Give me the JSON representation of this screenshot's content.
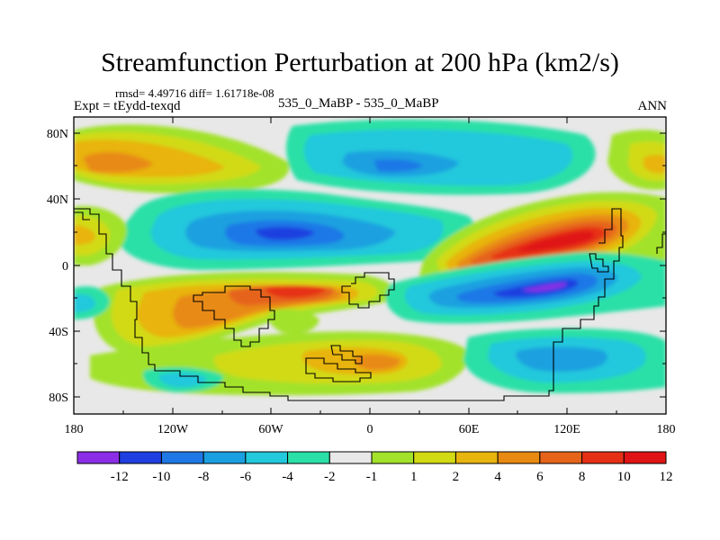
{
  "title": "Streamfunction Perturbation at 200 hPa (km2/s)",
  "subtitle": {
    "stats": "rmsd= 4.49716 diff= 1.61718e-08",
    "left": "Expt = tEydd-texqd",
    "center": "535_0_MaBP - 535_0_MaBP",
    "right": "ANN"
  },
  "map": {
    "lat_ticks": [
      "80N",
      "40N",
      "0",
      "40S",
      "80S"
    ],
    "lon_ticks": [
      "180",
      "120W",
      "60W",
      "0",
      "60E",
      "120E",
      "180"
    ]
  },
  "colorbar": {
    "colors": [
      "#8b2ee6",
      "#1f3fe0",
      "#1f78e6",
      "#1aa0e0",
      "#22c8dc",
      "#2ae0a6",
      "#e8e8e8",
      "#a2e22a",
      "#d2da14",
      "#e8b40e",
      "#e88a12",
      "#e6641a",
      "#e63016",
      "#e01414"
    ],
    "labels": [
      "-12",
      "-10",
      "-8",
      "-6",
      "-4",
      "-2",
      "-1",
      "1",
      "2",
      "4",
      "6",
      "8",
      "10",
      "12"
    ]
  },
  "colors": {
    "background": "#e8e8e8",
    "coast": "#000000"
  }
}
